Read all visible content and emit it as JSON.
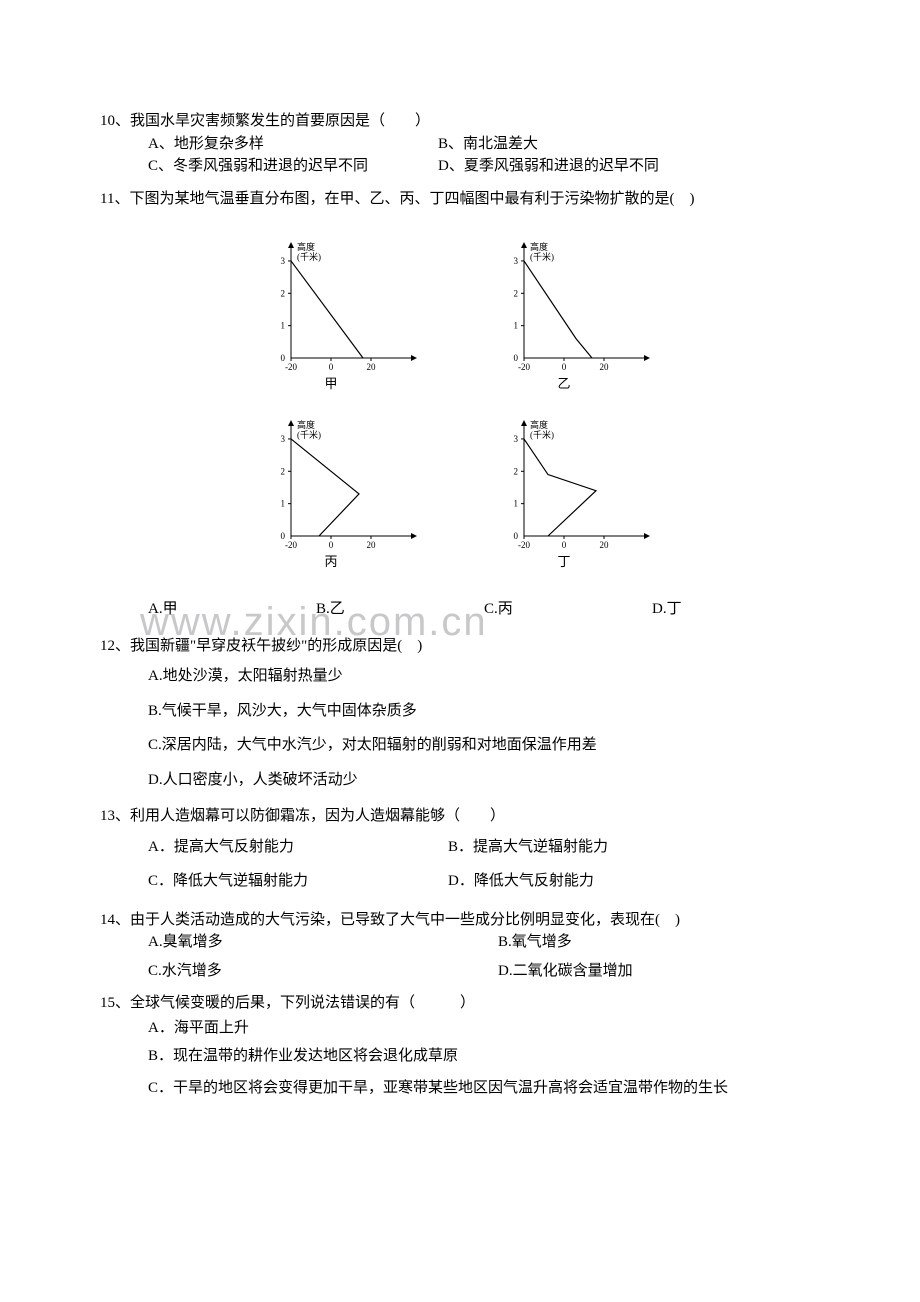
{
  "watermark_text": "www.zixin.com.cn",
  "colors": {
    "text": "#000000",
    "background": "#ffffff",
    "watermark": "#c8c8ca",
    "axis": "#000000"
  },
  "chart_common": {
    "y_label": "高度\n(千米)",
    "y_ticks": [
      0,
      1,
      2,
      3
    ],
    "x_ticks": [
      -20,
      0,
      20
    ],
    "x_range": [
      -20,
      40
    ],
    "y_range": [
      0,
      3.4
    ],
    "axis_fontsize": 9
  },
  "charts": [
    {
      "label": "甲",
      "points": [
        [
          16,
          0
        ],
        [
          -20,
          3
        ]
      ]
    },
    {
      "label": "乙",
      "points": [
        [
          14,
          0
        ],
        [
          6,
          0.6
        ],
        [
          -20,
          3
        ]
      ]
    },
    {
      "label": "丙",
      "points": [
        [
          -6,
          0
        ],
        [
          14,
          1.3
        ],
        [
          -20,
          3
        ]
      ]
    },
    {
      "label": "丁",
      "points": [
        [
          -8,
          0
        ],
        [
          16,
          1.4
        ],
        [
          -8,
          1.9
        ],
        [
          -20,
          3
        ]
      ]
    }
  ],
  "q10": {
    "num": "10、",
    "text": "我国水旱灾害频繁发生的首要原因是（　　）",
    "optA": "A、地形复杂多样",
    "optB": "B、南北温差大",
    "optC": "C、冬季风强弱和进退的迟早不同",
    "optD": "D、夏季风强弱和进退的迟早不同"
  },
  "q11": {
    "num": "11、",
    "text": "下图为某地气温垂直分布图，在甲、乙、丙、丁四幅图中最有利于污染物扩散的是(　)",
    "optA": "A.甲",
    "optB": "B.乙",
    "optC": "C.丙",
    "optD": "D.丁"
  },
  "q12": {
    "num": "12、",
    "text": "我国新疆\"早穿皮袄午披纱\"的形成原因是(　)",
    "optA": "A.地处沙漠，太阳辐射热量少",
    "optB": "B.气候干旱，风沙大，大气中固体杂质多",
    "optC": "C.深居内陆，大气中水汽少，对太阳辐射的削弱和对地面保温作用差",
    "optD": "D.人口密度小，人类破坏活动少"
  },
  "q13": {
    "num": "13、",
    "text": "利用人造烟幕可以防御霜冻，因为人造烟幕能够（　　）",
    "optA": "A．提高大气反射能力",
    "optB": "B．提高大气逆辐射能力",
    "optC": "C．降低大气逆辐射能力",
    "optD": "D．降低大气反射能力"
  },
  "q14": {
    "num": "14、",
    "text": "由于人类活动造成的大气污染，已导致了大气中一些成分比例明显变化，表现在(　)",
    "optA": "A.臭氧增多",
    "optB": "B.氧气增多",
    "optC": "C.水汽增多",
    "optD": "D.二氧化碳含量增加"
  },
  "q15": {
    "num": "15、",
    "text": "全球气候变暖的后果，下列说法错误的有（　　　）",
    "optA": "A．海平面上升",
    "optB": "B．现在温带的耕作业发达地区将会退化成草原",
    "optC": "C．干旱的地区将会变得更加干旱，亚寒带某些地区因气温升高将会适宜温带作物的生长"
  }
}
